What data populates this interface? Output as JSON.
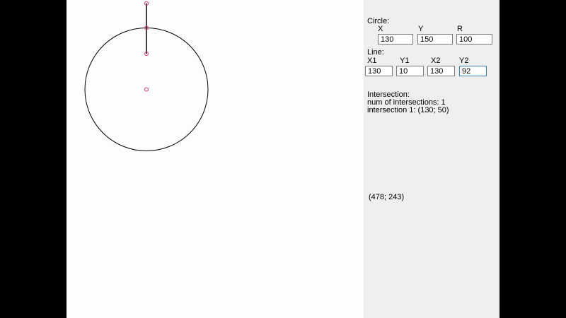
{
  "circle": {
    "label": "Circle:",
    "x": {
      "label": "X",
      "value": "130"
    },
    "y": {
      "label": "Y",
      "value": "150"
    },
    "r": {
      "label": "R",
      "value": "100"
    }
  },
  "line": {
    "label": "Line:",
    "x1": {
      "label": "X1",
      "value": "130"
    },
    "y1": {
      "label": "Y1",
      "value": "10"
    },
    "x2": {
      "label": "X2",
      "value": "130"
    },
    "y2": {
      "label": "Y2",
      "value": "92"
    }
  },
  "intersection": {
    "label": "Intersection:",
    "count_text": "num of intersections: 1",
    "point_text": "intersection 1: (130; 50)"
  },
  "cursor_coords": "(478; 243)",
  "colors": {
    "marker": "#d6336c",
    "stroke": "#000000",
    "canvas_bg": "#fdfdfd",
    "panel_bg": "#efefef"
  }
}
